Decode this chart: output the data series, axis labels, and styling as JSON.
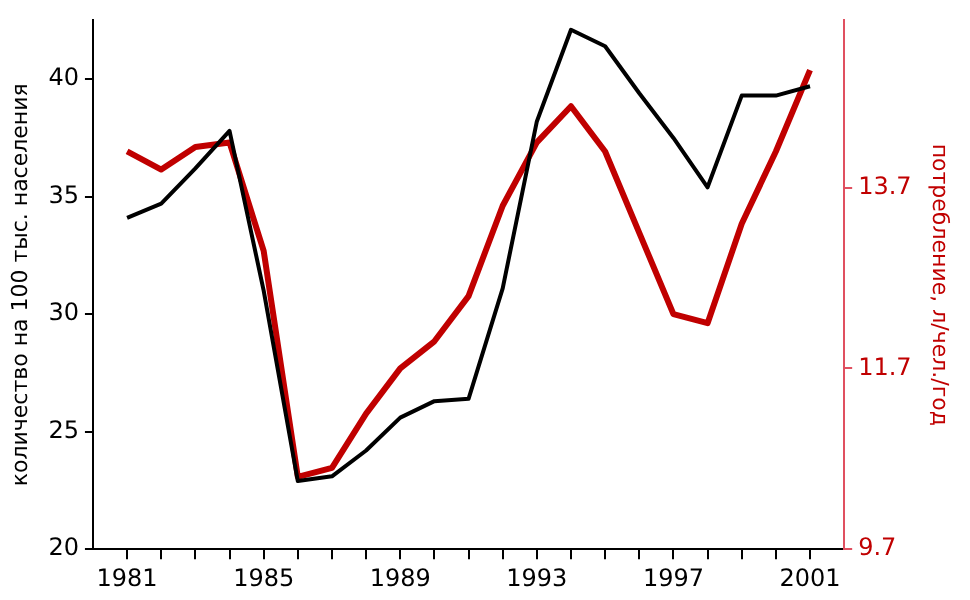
{
  "chart_data": {
    "type": "line",
    "ylabel": "количество на 100 тыс. населения",
    "y2label": "потребление, л/чел./год",
    "x": [
      1981,
      1982,
      1983,
      1984,
      1985,
      1986,
      1987,
      1988,
      1989,
      1990,
      1991,
      1992,
      1993,
      1994,
      1995,
      1996,
      1997,
      1998,
      1999,
      2000,
      2001
    ],
    "xlim": [
      1980,
      2002
    ],
    "xticks": [
      1981,
      {
        "value": 1982,
        "label": null
      },
      {
        "value": 1983,
        "label": null
      },
      {
        "value": 1984,
        "label": null
      },
      1985,
      {
        "value": 1986,
        "label": null
      },
      {
        "value": 1987,
        "label": null
      },
      {
        "value": 1988,
        "label": null
      },
      1989,
      {
        "value": 1990,
        "label": null
      },
      {
        "value": 1991,
        "label": null
      },
      {
        "value": 1992,
        "label": null
      },
      1993,
      {
        "value": 1994,
        "label": null
      },
      {
        "value": 1995,
        "label": null
      },
      {
        "value": 1996,
        "label": null
      },
      1997,
      {
        "value": 1998,
        "label": null
      },
      {
        "value": 1999,
        "label": null
      },
      {
        "value": 2000,
        "label": null
      },
      2001
    ],
    "ylim": [
      20,
      42.5
    ],
    "yticks": [
      20,
      25,
      30,
      35,
      40
    ],
    "y2lim": [
      9.7,
      15.55
    ],
    "y2ticks": [
      9.7,
      11.7,
      13.7
    ],
    "series": [
      {
        "color": "#000000",
        "values": [
          34.1,
          34.7,
          36.2,
          37.8,
          31,
          22.9,
          23.1,
          24.2,
          25.6,
          26.3,
          26.4,
          31.1,
          38.2,
          42.1,
          41.4,
          39.4,
          37.5,
          35.4,
          39.3,
          39.3,
          39.7
        ]
      },
      {
        "color": "#c00000",
        "axis": "y2",
        "values": [
          14.1,
          13.9,
          14.15,
          14.2,
          13.0,
          10.5,
          10.6,
          11.2,
          11.7,
          12.0,
          12.5,
          13.5,
          14.2,
          14.6,
          14.1,
          13.2,
          12.3,
          12.2,
          13.3,
          14.1,
          15.0
        ]
      }
    ],
    "grid": false,
    "legend": false,
    "marker": "none",
    "line_style": "solid"
  }
}
